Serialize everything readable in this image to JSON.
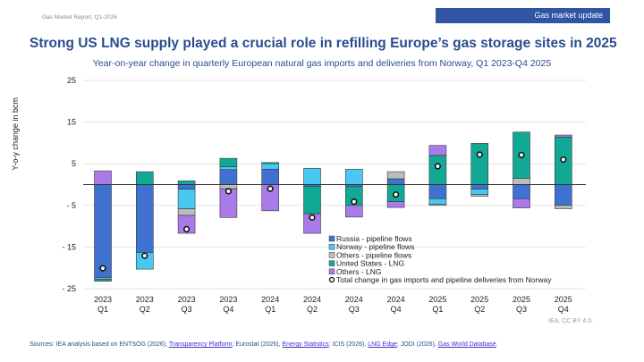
{
  "header": {
    "report_name": "Gas Market Report, Q1-2026",
    "badge": "Gas market update",
    "title": "Strong US LNG supply played a crucial role in refilling Europe’s gas storage sites in 2025"
  },
  "footer": {
    "credit": "IEA. CC BY 4.0.",
    "sources": [
      {
        "text": "Sources: IEA analysis based on ENTSOG (2026), ",
        "link": false
      },
      {
        "text": "Transparency Platform",
        "link": true
      },
      {
        "text": "; Eurostat (2026), ",
        "link": false
      },
      {
        "text": "Energy Statistics",
        "link": true
      },
      {
        "text": "; ICIS (2026), ",
        "link": false
      },
      {
        "text": "LNG Edge",
        "link": true
      },
      {
        "text": "; JODI (2026), ",
        "link": false
      },
      {
        "text": "Gas World Database",
        "link": true
      },
      {
        "text": ".",
        "link": false
      }
    ]
  },
  "chart_data": {
    "type": "bar",
    "stacked": true,
    "title": "Year-on-year change in quarterly European natural gas imports and deliveries from Norway, Q1 2023-Q4 2025",
    "xlabel": "",
    "ylabel": "Y-o-y change in bcm",
    "ylim": [
      -25,
      25
    ],
    "yticks": [
      25,
      15,
      5,
      -5,
      -15,
      -25
    ],
    "ytick_labels": [
      "25",
      "15",
      "5",
      "- 5",
      "- 15",
      "- 25"
    ],
    "grid": true,
    "legend_position": "bottom-center",
    "categories": [
      [
        "2023",
        "Q1"
      ],
      [
        "2023",
        "Q2"
      ],
      [
        "2023",
        "Q3"
      ],
      [
        "2023",
        "Q4"
      ],
      [
        "2024",
        "Q1"
      ],
      [
        "2024",
        "Q2"
      ],
      [
        "2024",
        "Q3"
      ],
      [
        "2024",
        "Q4"
      ],
      [
        "2025",
        "Q1"
      ],
      [
        "2025",
        "Q2"
      ],
      [
        "2025",
        "Q3"
      ],
      [
        "2025",
        "Q4"
      ]
    ],
    "series": [
      {
        "name": "Russia - pipeline flows",
        "color": "#3f72d0",
        "values": [
          -22.4,
          -16.3,
          -1.1,
          3.6,
          3.7,
          -0.4,
          -0.5,
          1.4,
          -3.4,
          -1.1,
          -3.4,
          -5.0
        ]
      },
      {
        "name": "Norway - pipeline flows",
        "color": "#48c9f2",
        "values": [
          0,
          -4.0,
          -4.7,
          0.7,
          1.3,
          3.9,
          3.7,
          0,
          -1.3,
          -1.3,
          0,
          0
        ]
      },
      {
        "name": "Others - pipeline flows",
        "color": "#bcbcbc",
        "values": [
          -0.3,
          0,
          -1.6,
          -1.0,
          0,
          0,
          0,
          1.7,
          -0.3,
          -0.4,
          1.5,
          -0.8
        ]
      },
      {
        "name": "United States - LNG",
        "color": "#12a896",
        "values": [
          -0.5,
          3.1,
          0.9,
          2.0,
          0.3,
          -6.6,
          -4.5,
          -4.1,
          7.0,
          9.9,
          11.1,
          11.4
        ]
      },
      {
        "name": "Others - LNG",
        "color": "#a97ae8",
        "values": [
          3.3,
          0,
          -4.3,
          -6.9,
          -6.3,
          -4.7,
          -2.8,
          -1.4,
          2.4,
          0,
          -2.2,
          0.5
        ]
      }
    ],
    "total": {
      "name": "Total change in gas imports and pipeline deliveries from Norway",
      "values": [
        -20.1,
        -17.1,
        -10.7,
        -1.6,
        -1.0,
        -7.9,
        -4.1,
        -2.4,
        4.4,
        7.2,
        7.1,
        6.0
      ]
    }
  }
}
